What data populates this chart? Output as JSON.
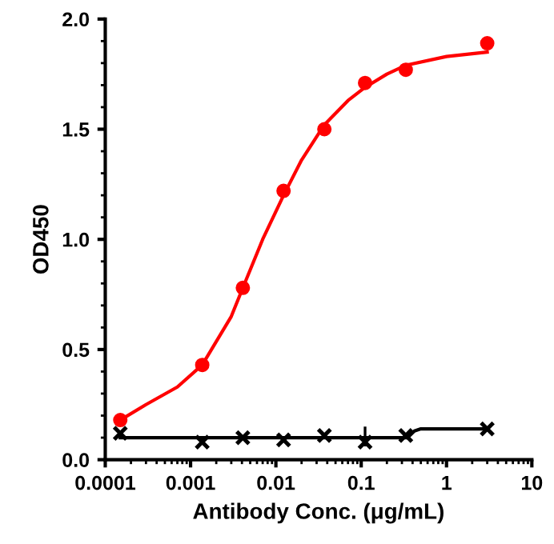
{
  "chart_data": {
    "type": "scatter",
    "xlabel": "Antibody Conc. (μg/mL)",
    "ylabel": "OD450",
    "log": "x",
    "xlim": [
      0.0001,
      10
    ],
    "xticks": [
      0.0001,
      0.001,
      0.01,
      0.1,
      1,
      10
    ],
    "ylim": [
      0,
      2
    ],
    "yticks": [
      {
        "value": 0,
        "label": "0.0"
      },
      0.5,
      {
        "value": 1,
        "label": "1.0"
      },
      1.5,
      {
        "value": 2,
        "label": "2.0"
      }
    ],
    "grid": false,
    "series": [
      {
        "type": "line",
        "color": "#ff0000",
        "marker": "none",
        "x": [
          0.00015,
          0.0003,
          0.0007,
          0.00137,
          0.003,
          0.0041,
          0.007,
          0.0123,
          0.02,
          0.037,
          0.07,
          0.111,
          0.2,
          0.333,
          1,
          3
        ],
        "values": [
          0.18,
          0.25,
          0.33,
          0.43,
          0.65,
          0.78,
          1.0,
          1.2,
          1.36,
          1.52,
          1.63,
          1.69,
          1.75,
          1.79,
          1.83,
          1.85
        ]
      },
      {
        "color": "#ff0000",
        "marker": "circle",
        "x": [
          0.00015,
          0.00137,
          0.0041,
          0.0123,
          0.037,
          0.111,
          0.333,
          3
        ],
        "values": [
          0.18,
          0.43,
          0.78,
          1.22,
          1.5,
          1.71,
          1.77,
          1.89
        ]
      },
      {
        "type": "line",
        "color": "#000000",
        "marker": "none",
        "x": [
          0.00015,
          0.35,
          0.42,
          0.5,
          3
        ],
        "values": [
          0.1,
          0.1,
          0.13,
          0.14,
          0.14
        ]
      },
      {
        "color": "#000000",
        "marker": "cross",
        "x": [
          0.00015,
          0.00137,
          0.0041,
          0.0123,
          0.037,
          0.111,
          0.333,
          3
        ],
        "values": [
          0.12,
          0.08,
          0.1,
          0.09,
          0.11,
          0.08,
          0.11,
          0.14
        ],
        "errors": [
          null,
          null,
          null,
          null,
          null,
          [
            0.06,
            0.15
          ],
          null,
          null
        ]
      }
    ]
  }
}
